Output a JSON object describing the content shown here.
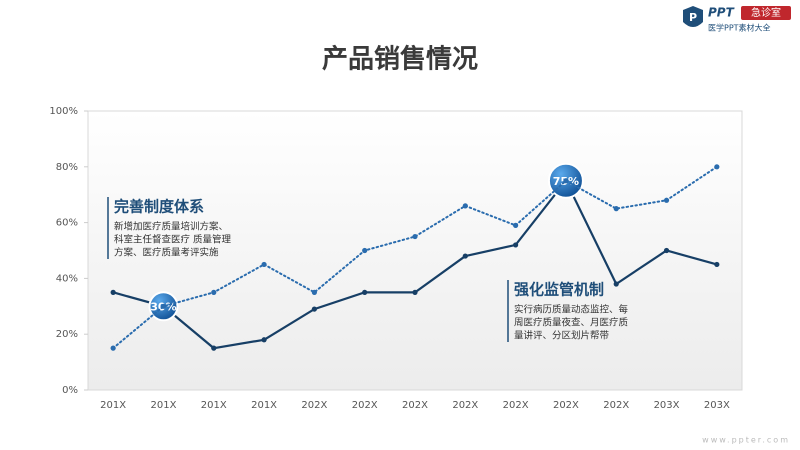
{
  "header": {
    "logo_mark": "PPT",
    "logo_badge": "急诊室",
    "logo_sub": "医学PPT素材大全"
  },
  "chart_data": {
    "type": "line",
    "title": "产品销售情况",
    "categories": [
      "201X",
      "201X",
      "201X",
      "201X",
      "202X",
      "202X",
      "202X",
      "202X",
      "202X",
      "202X",
      "202X",
      "203X",
      "203X"
    ],
    "series": [
      {
        "color": "#173f66",
        "style": "solid",
        "values": [
          35,
          30,
          15,
          18,
          29,
          35,
          35,
          48,
          52,
          75,
          38,
          50,
          45
        ],
        "value_labels": [
          null,
          "30%",
          null,
          null,
          null,
          null,
          null,
          null,
          null,
          "75%",
          null,
          null,
          null
        ]
      },
      {
        "color": "#2a6cae",
        "style": "dotted",
        "values": [
          15,
          30,
          35,
          45,
          35,
          50,
          55,
          66,
          59,
          75,
          65,
          68,
          80
        ]
      }
    ],
    "ylim": [
      0,
      100
    ],
    "yticks": [
      {
        "value": 0,
        "label": "0%"
      },
      {
        "value": 20,
        "label": "20%"
      },
      {
        "value": 40,
        "label": "40%"
      },
      {
        "value": 60,
        "label": "60%"
      },
      {
        "value": 80,
        "label": "80%"
      },
      {
        "value": 100,
        "label": "100%"
      }
    ],
    "annotations": [
      {
        "title": "完善制度体系",
        "lines": [
          "新增加医疗质量培训方案、",
          "科室主任督查医疗 质量管理",
          "方案、医疗质量考评实施"
        ]
      },
      {
        "title": "强化监管机制",
        "lines": [
          "实行病历质量动态监控、每",
          "周医疗质量夜查、月医疗质",
          "量讲评、分区划片帮带"
        ]
      }
    ]
  },
  "footer": "www.ppter.com"
}
